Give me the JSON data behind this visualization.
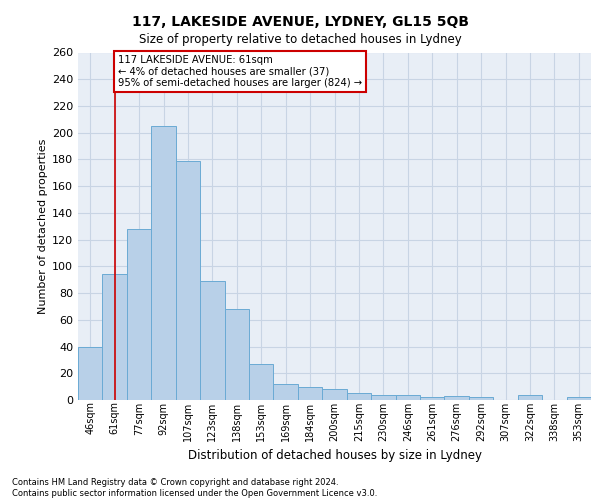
{
  "title1": "117, LAKESIDE AVENUE, LYDNEY, GL15 5QB",
  "title2": "Size of property relative to detached houses in Lydney",
  "xlabel": "Distribution of detached houses by size in Lydney",
  "ylabel": "Number of detached properties",
  "categories": [
    "46sqm",
    "61sqm",
    "77sqm",
    "92sqm",
    "107sqm",
    "123sqm",
    "138sqm",
    "153sqm",
    "169sqm",
    "184sqm",
    "200sqm",
    "215sqm",
    "230sqm",
    "246sqm",
    "261sqm",
    "276sqm",
    "292sqm",
    "307sqm",
    "322sqm",
    "338sqm",
    "353sqm"
  ],
  "values": [
    40,
    94,
    128,
    205,
    179,
    89,
    68,
    27,
    12,
    10,
    8,
    5,
    4,
    4,
    2,
    3,
    2,
    0,
    4,
    0,
    2
  ],
  "bar_color": "#b8d0e8",
  "bar_edge_color": "#6aaad4",
  "grid_color": "#c8d4e4",
  "background_color": "#e8eef6",
  "annotation_box_text": "117 LAKESIDE AVENUE: 61sqm\n← 4% of detached houses are smaller (37)\n95% of semi-detached houses are larger (824) →",
  "annotation_box_color": "#ffffff",
  "annotation_box_edge_color": "#cc0000",
  "vline_x": 1,
  "vline_color": "#cc0000",
  "ylim": [
    0,
    260
  ],
  "yticks": [
    0,
    20,
    40,
    60,
    80,
    100,
    120,
    140,
    160,
    180,
    200,
    220,
    240,
    260
  ],
  "footer_line1": "Contains HM Land Registry data © Crown copyright and database right 2024.",
  "footer_line2": "Contains public sector information licensed under the Open Government Licence v3.0."
}
